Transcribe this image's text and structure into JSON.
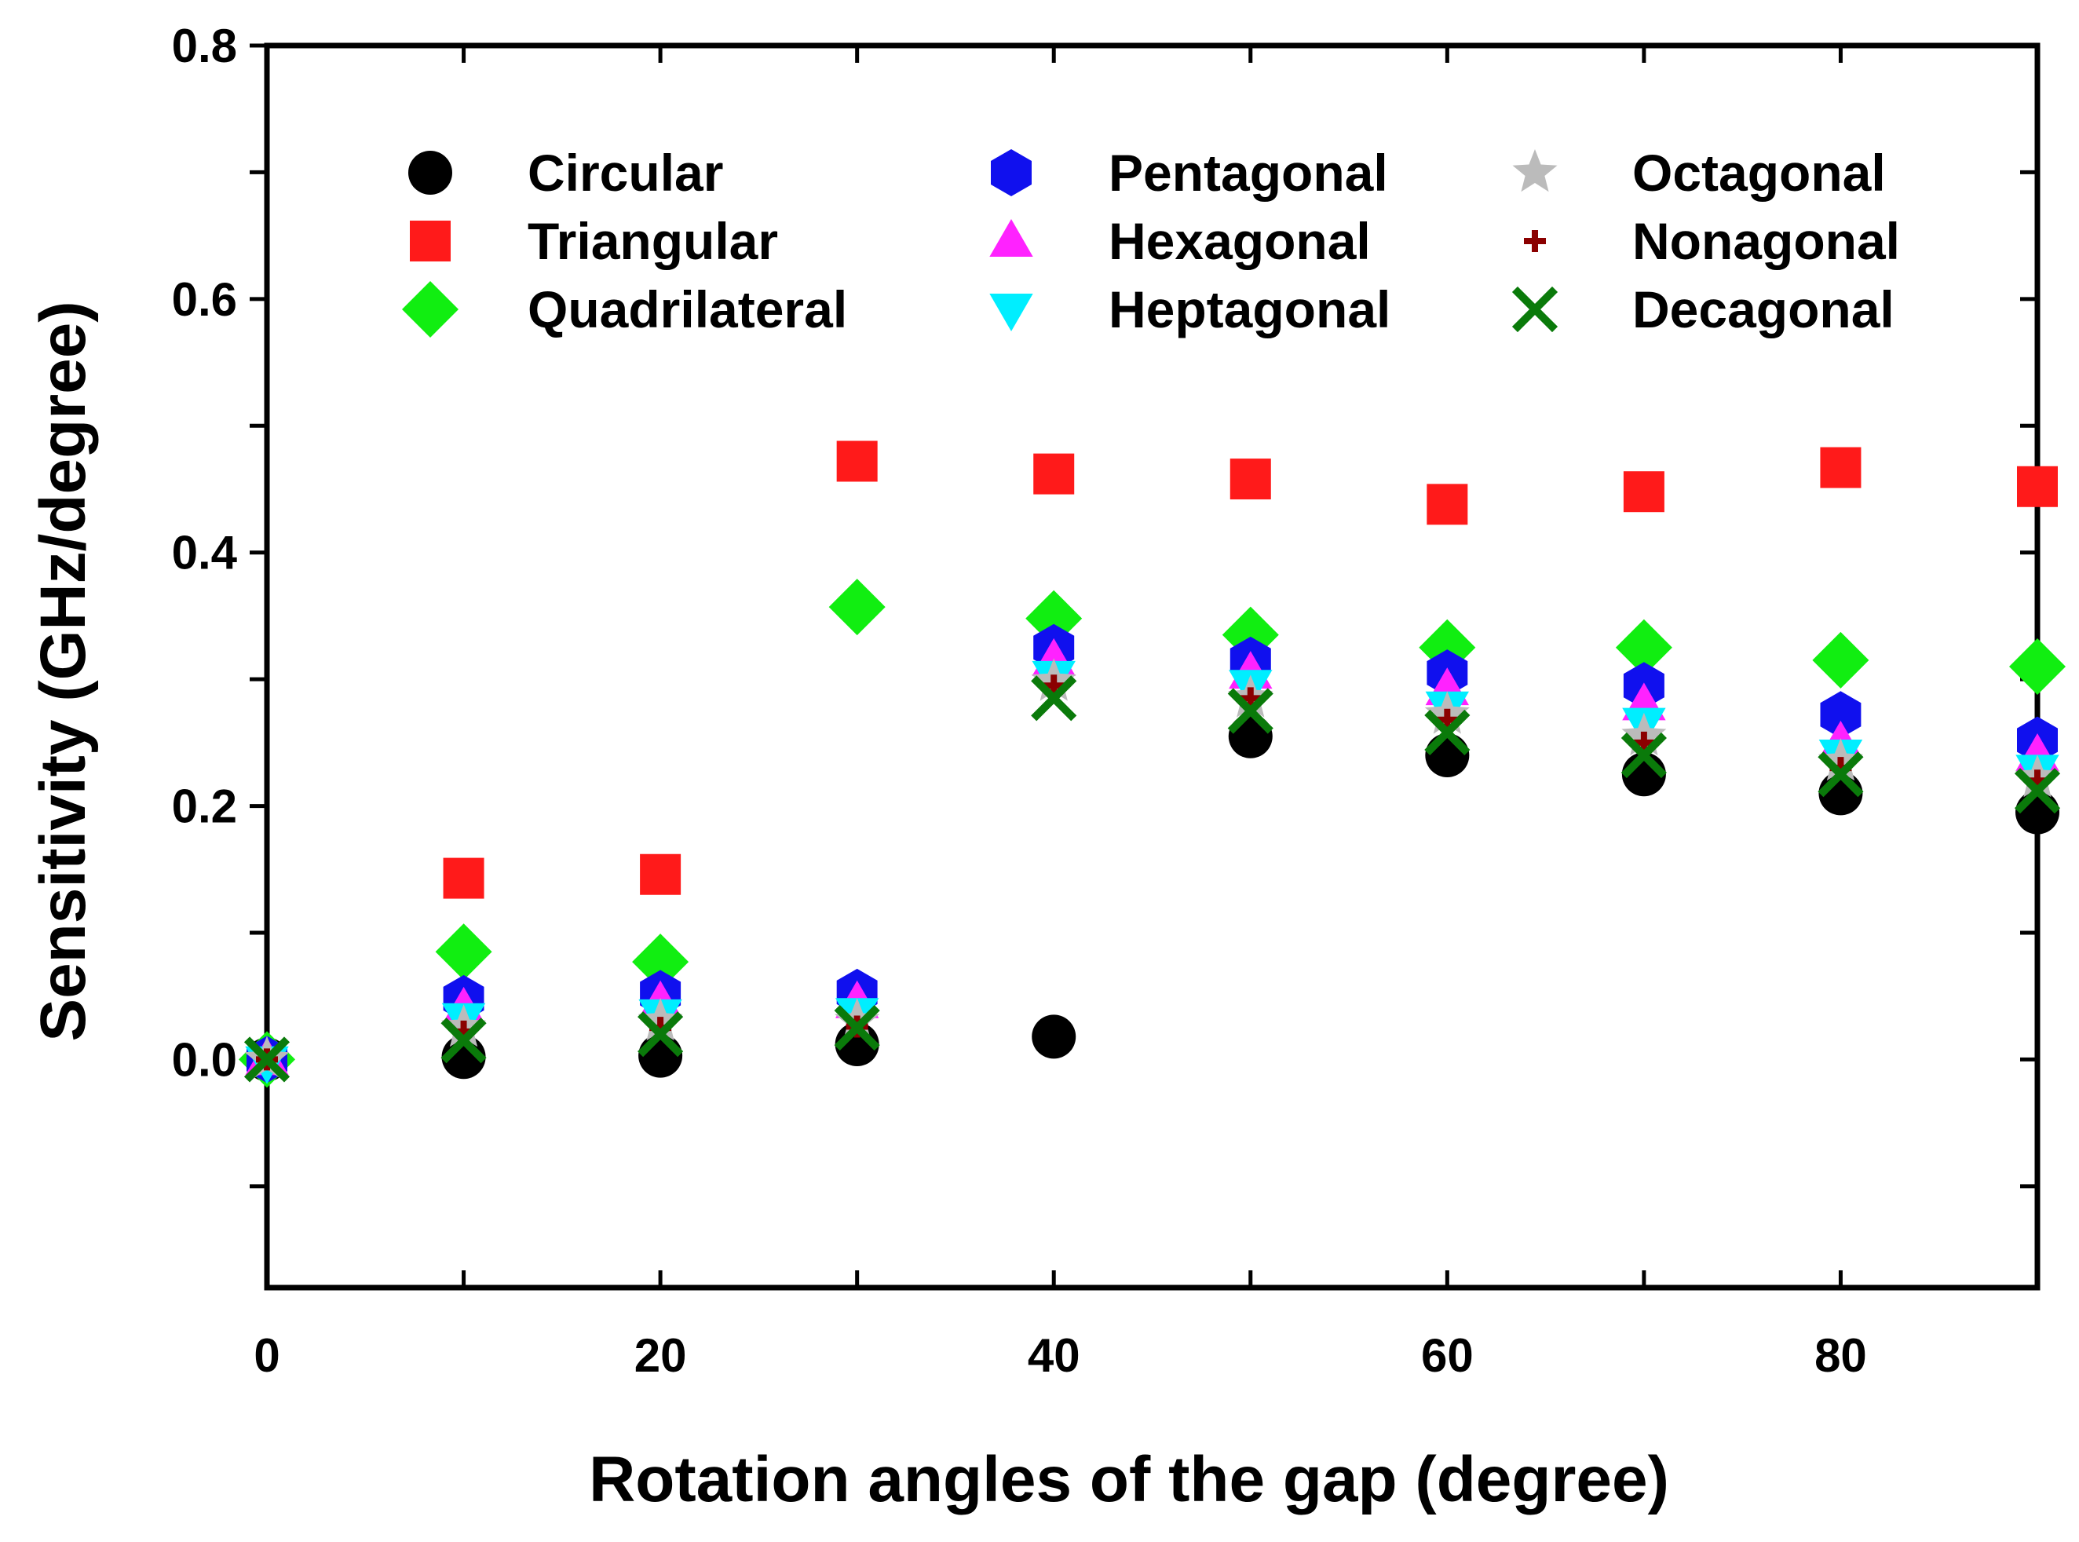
{
  "chart_data": {
    "type": "scatter",
    "title": "",
    "xlabel": "Rotation angles of the gap (degree)",
    "ylabel": "Sensitivity (GHz/degree)",
    "xlim": [
      0,
      90
    ],
    "ylim": [
      -0.18,
      0.8
    ],
    "xticks": [
      0,
      20,
      40,
      60,
      80
    ],
    "xtick_labels": [
      "0",
      "20",
      "40",
      "60",
      "80"
    ],
    "yticks": [
      0.0,
      0.2,
      0.4,
      0.6,
      0.8
    ],
    "ytick_labels": [
      "0.0",
      "0.2",
      "0.4",
      "0.6",
      "0.8"
    ],
    "grid": false,
    "legend_position": "top",
    "series": [
      {
        "name": "Circular",
        "marker": "circle",
        "color": "#000000",
        "x": [
          0,
          10,
          20,
          30,
          40,
          50,
          60,
          70,
          80,
          90
        ],
        "y": [
          0.0,
          0.002,
          0.003,
          0.012,
          0.018,
          0.255,
          0.24,
          0.225,
          0.21,
          0.195
        ]
      },
      {
        "name": "Triangular",
        "marker": "square",
        "color": "#ff1a1a",
        "x": [
          10,
          20,
          30,
          40,
          50,
          60,
          70,
          80,
          90
        ],
        "y": [
          0.143,
          0.146,
          0.472,
          0.462,
          0.458,
          0.438,
          0.448,
          0.467,
          0.452
        ]
      },
      {
        "name": "Quadrilateral",
        "marker": "diamond",
        "color": "#11ee11",
        "x": [
          0,
          10,
          20,
          30,
          40,
          50,
          60,
          70,
          80,
          90
        ],
        "y": [
          0.0,
          0.085,
          0.077,
          0.357,
          0.348,
          0.335,
          0.325,
          0.325,
          0.315,
          0.31
        ]
      },
      {
        "name": "Pentagonal",
        "marker": "hexagon",
        "color": "#1010ee",
        "x": [
          0,
          10,
          20,
          30,
          40,
          50,
          60,
          70,
          80,
          90
        ],
        "y": [
          0.0,
          0.048,
          0.052,
          0.053,
          0.325,
          0.315,
          0.305,
          0.295,
          0.272,
          0.252
        ]
      },
      {
        "name": "Hexagonal",
        "marker": "triangle-up",
        "color": "#ff22ff",
        "x": [
          0,
          10,
          20,
          30,
          40,
          50,
          60,
          70,
          80,
          90
        ],
        "y": [
          0.0,
          0.04,
          0.045,
          0.045,
          0.315,
          0.305,
          0.292,
          0.28,
          0.25,
          0.24
        ]
      },
      {
        "name": "Heptagonal",
        "marker": "triangle-down",
        "color": "#00eeff",
        "x": [
          0,
          10,
          20,
          30,
          40,
          50,
          60,
          70,
          80,
          90
        ],
        "y": [
          -0.002,
          0.032,
          0.035,
          0.036,
          0.302,
          0.295,
          0.278,
          0.265,
          0.24,
          0.228
        ]
      },
      {
        "name": "Octagonal",
        "marker": "star",
        "color": "#bbbbbb",
        "x": [
          0,
          10,
          20,
          30,
          40,
          50,
          60,
          70,
          80,
          90
        ],
        "y": [
          0.0,
          0.025,
          0.03,
          0.03,
          0.298,
          0.285,
          0.272,
          0.255,
          0.235,
          0.222
        ]
      },
      {
        "name": "Nonagonal",
        "marker": "plus",
        "color": "#8b0000",
        "x": [
          0,
          10,
          20,
          30,
          40,
          50,
          60,
          70,
          80,
          90
        ],
        "y": [
          0.0,
          0.022,
          0.025,
          0.026,
          0.295,
          0.285,
          0.268,
          0.25,
          0.23,
          0.22
        ]
      },
      {
        "name": "Decagonal",
        "marker": "x",
        "color": "#0a7a0a",
        "x": [
          0,
          10,
          20,
          30,
          40,
          50,
          60,
          70,
          80,
          90
        ],
        "y": [
          0.0,
          0.015,
          0.02,
          0.025,
          0.285,
          0.275,
          0.258,
          0.24,
          0.225,
          0.212
        ]
      }
    ]
  }
}
